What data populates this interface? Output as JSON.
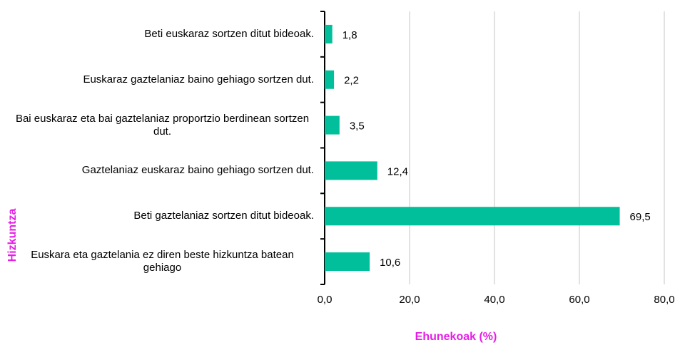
{
  "chart_data": {
    "type": "barh",
    "categories": [
      "Beti euskaraz sortzen ditut bideoak.",
      "Euskaraz gaztelaniaz baino gehiago sortzen dut.",
      "Bai euskaraz eta bai gaztelaniaz proportzio berdinean sortzen dut.",
      "Gaztelaniaz euskaraz baino gehiago sortzen dut.",
      "Beti gaztelaniaz sortzen ditut bideoak.",
      "Euskara eta gaztelania ez diren beste hizkuntza batean gehiago"
    ],
    "values": [
      1.8,
      2.2,
      3.5,
      12.4,
      69.5,
      10.6
    ],
    "value_labels": [
      "1,8",
      "2,2",
      "3,5",
      "12,4",
      "69,5",
      "10,6"
    ],
    "color": "#00bf9a",
    "xlim": [
      0,
      80
    ],
    "xticks": [
      {
        "value": 0,
        "label": "0,0"
      },
      {
        "value": 20,
        "label": "20,0"
      },
      {
        "value": 40,
        "label": "40,0"
      },
      {
        "value": 60,
        "label": "60,0"
      },
      {
        "value": 80,
        "label": "80,0"
      }
    ],
    "xlabel": "Ehunekoak (%)",
    "ylabel": "Hizkuntza",
    "grid": true
  }
}
